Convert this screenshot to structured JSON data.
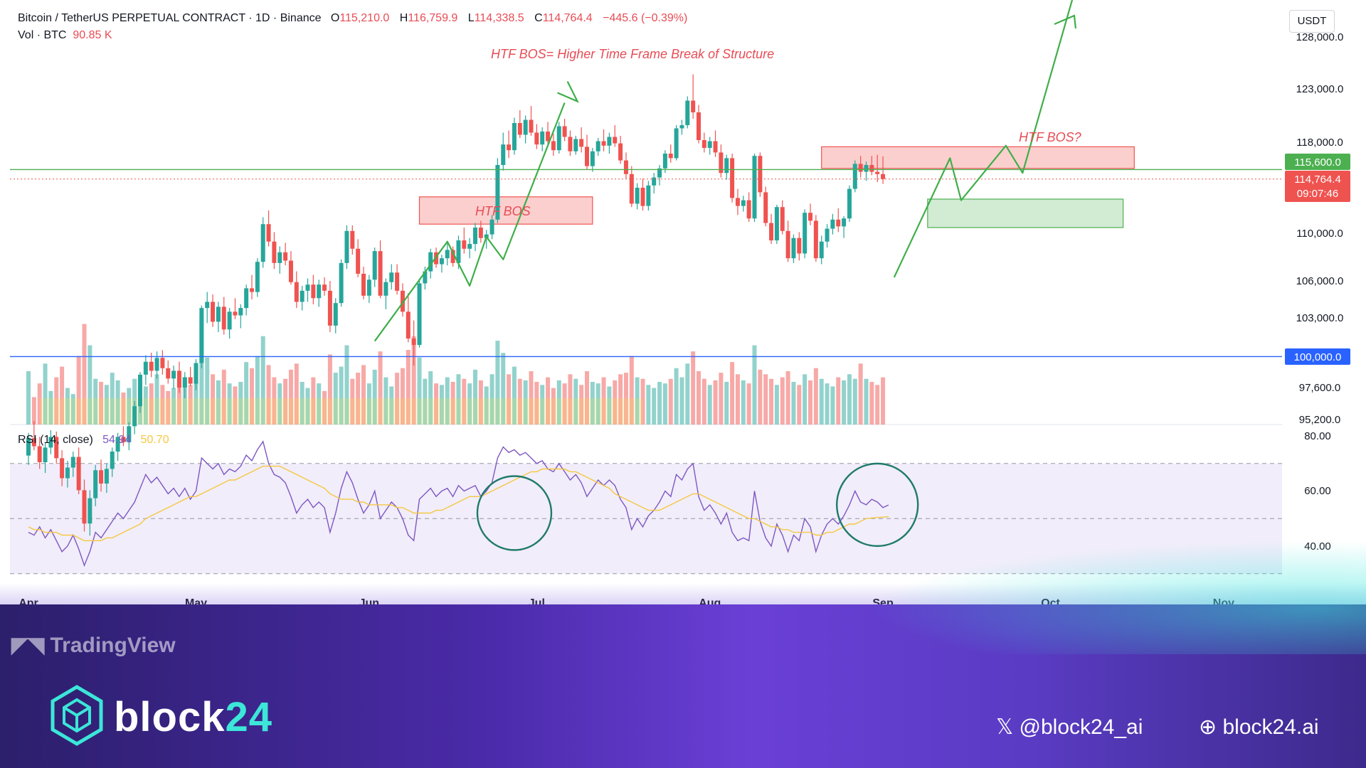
{
  "header": {
    "symbol": "Bitcoin / TetherUS PERPETUAL CONTRACT · 1D · Binance",
    "o_label": "O",
    "o_value": "115,210.0",
    "h_label": "H",
    "h_value": "116,759.9",
    "l_label": "L",
    "l_value": "114,338.5",
    "c_label": "C",
    "c_value": "114,764.4",
    "change": "−445.6 (−0.39%)",
    "vol_label": "Vol · BTC",
    "vol_value": "90.85 K"
  },
  "currency_button": "USDT",
  "rsi_header": {
    "label": "RSI (14, close)",
    "rsi_value": "54.94",
    "ma_value": "50.70"
  },
  "annotations": {
    "title": "HTF BOS= Higher Time Frame Break of Structure",
    "htf_bos_left": "HTF BOS",
    "htf_bos_right": "HTF BOS?"
  },
  "price_badges": {
    "green_level": "115,600.0",
    "last_price": "114,764.4",
    "countdown": "09:07:46",
    "blue_level": "100,000.0"
  },
  "footer": {
    "tradingview": "TradingView",
    "brand_main": "block",
    "brand_accent": "24",
    "x_handle": "@block24_ai",
    "website": "block24.ai"
  },
  "colors": {
    "bull": "#26a69a",
    "bear": "#ef5350",
    "arrow": "#3fae49",
    "rsi_line": "#7e57c2",
    "rsi_ma": "#f5c842",
    "blue_level": "#2962ff",
    "green_level": "#4caf50"
  },
  "chart_data": {
    "type": "candlestick",
    "price_axis_ticks": [
      "128,000.0",
      "123,000.0",
      "118,000.0",
      "110,000.0",
      "106,000.0",
      "103,000.0",
      "97,600.0",
      "95,200.0"
    ],
    "price_axis_values": [
      128000,
      123000,
      118000,
      110000,
      106000,
      103000,
      97600,
      95200
    ],
    "rsi_axis_ticks": [
      "80.00",
      "60.00",
      "40.00"
    ],
    "rsi_bands": [
      70,
      50,
      30
    ],
    "x_labels": [
      "Apr",
      "May",
      "Jun",
      "Jul",
      "Aug",
      "Sep",
      "Oct",
      "Nov"
    ],
    "horizontal_levels": [
      115600,
      114764.4,
      100000
    ],
    "zones": [
      {
        "kind": "supply",
        "from_day": 70,
        "to_day": 101,
        "low": 110800,
        "high": 113200
      },
      {
        "kind": "supply",
        "from_day": 142,
        "to_day": 198,
        "low": 115700,
        "high": 117600
      },
      {
        "kind": "demand",
        "from_day": 161,
        "to_day": 196,
        "low": 110500,
        "high": 113000
      }
    ],
    "candles": [
      [
        92500,
        94200,
        91800,
        93800
      ],
      [
        93800,
        95100,
        92900,
        93200
      ],
      [
        93200,
        93900,
        91500,
        92000
      ],
      [
        92000,
        93500,
        91200,
        93100
      ],
      [
        93100,
        94400,
        92600,
        93900
      ],
      [
        93900,
        94300,
        91900,
        92300
      ],
      [
        92300,
        92900,
        90200,
        90800
      ],
      [
        90800,
        92100,
        90100,
        91600
      ],
      [
        91600,
        92800,
        90900,
        92400
      ],
      [
        92400,
        93100,
        89600,
        89900
      ],
      [
        89900,
        90700,
        86800,
        87400
      ],
      [
        87400,
        89900,
        86500,
        89300
      ],
      [
        89300,
        91800,
        88700,
        91400
      ],
      [
        91400,
        92200,
        89800,
        90400
      ],
      [
        90400,
        91900,
        89700,
        91500
      ],
      [
        91500,
        93100,
        90900,
        92800
      ],
      [
        92800,
        94200,
        92100,
        93900
      ],
      [
        93900,
        94700,
        93200,
        93500
      ],
      [
        93500,
        95000,
        92900,
        94700
      ],
      [
        94700,
        96600,
        94100,
        96200
      ],
      [
        96200,
        98800,
        95700,
        98600
      ],
      [
        98600,
        100100,
        97800,
        99600
      ],
      [
        99600,
        100300,
        98400,
        98900
      ],
      [
        98900,
        100400,
        98300,
        99900
      ],
      [
        99900,
        100500,
        98600,
        99100
      ],
      [
        99100,
        99700,
        97900,
        98300
      ],
      [
        98300,
        99300,
        97500,
        98900
      ],
      [
        98900,
        99600,
        97200,
        97600
      ],
      [
        97600,
        98800,
        96800,
        98400
      ],
      [
        98400,
        99200,
        97700,
        97900
      ],
      [
        97900,
        99800,
        97400,
        99500
      ],
      [
        99500,
        104000,
        99100,
        103800
      ],
      [
        103800,
        105100,
        102600,
        104300
      ],
      [
        104300,
        104900,
        102300,
        102700
      ],
      [
        102700,
        104300,
        101900,
        103900
      ],
      [
        103900,
        104700,
        101700,
        102100
      ],
      [
        102100,
        103800,
        101400,
        103500
      ],
      [
        103500,
        104600,
        102900,
        103200
      ],
      [
        103200,
        104100,
        102200,
        103800
      ],
      [
        103800,
        105700,
        103200,
        105400
      ],
      [
        105400,
        106500,
        104500,
        105100
      ],
      [
        105100,
        107900,
        104700,
        107600
      ],
      [
        107600,
        111400,
        107100,
        110800
      ],
      [
        110800,
        112000,
        108900,
        109300
      ],
      [
        109300,
        110100,
        107000,
        107500
      ],
      [
        107500,
        108900,
        106600,
        108400
      ],
      [
        108400,
        109200,
        107300,
        107700
      ],
      [
        107700,
        108500,
        105700,
        105900
      ],
      [
        105900,
        106800,
        103800,
        104300
      ],
      [
        104300,
        105600,
        103600,
        105200
      ],
      [
        105200,
        106200,
        104300,
        105700
      ],
      [
        105700,
        106500,
        104100,
        104600
      ],
      [
        104600,
        106100,
        103900,
        105700
      ],
      [
        105700,
        106300,
        104800,
        105200
      ],
      [
        105200,
        106000,
        101900,
        102400
      ],
      [
        102400,
        104600,
        101800,
        104200
      ],
      [
        104200,
        107800,
        103900,
        107500
      ],
      [
        107500,
        110700,
        107000,
        110200
      ],
      [
        110200,
        110700,
        108200,
        108700
      ],
      [
        108700,
        109500,
        106300,
        106600
      ],
      [
        106600,
        107200,
        104500,
        104800
      ],
      [
        104800,
        106500,
        104200,
        106100
      ],
      [
        106100,
        108800,
        105500,
        108500
      ],
      [
        108500,
        109400,
        104600,
        104800
      ],
      [
        104800,
        106200,
        103700,
        105900
      ],
      [
        105900,
        107400,
        105300,
        106700
      ],
      [
        106700,
        107400,
        104900,
        105200
      ],
      [
        105200,
        105800,
        103100,
        103500
      ],
      [
        103500,
        105000,
        101100,
        101400
      ],
      [
        101400,
        102800,
        99300,
        100900
      ],
      [
        100900,
        106200,
        100700,
        105800
      ],
      [
        105800,
        107200,
        105300,
        106800
      ],
      [
        106800,
        108700,
        106200,
        108400
      ],
      [
        108400,
        108800,
        107100,
        107400
      ],
      [
        107400,
        108200,
        106700,
        107900
      ],
      [
        107900,
        109300,
        107300,
        108600
      ],
      [
        108600,
        108900,
        107200,
        107500
      ],
      [
        107500,
        109800,
        107000,
        109400
      ],
      [
        109400,
        110500,
        108300,
        108700
      ],
      [
        108700,
        109600,
        107900,
        109100
      ],
      [
        109100,
        110900,
        108500,
        110500
      ],
      [
        110500,
        111100,
        109200,
        109600
      ],
      [
        109600,
        110300,
        108700,
        109900
      ],
      [
        109900,
        111600,
        109500,
        111200
      ],
      [
        111200,
        116600,
        110900,
        116000
      ],
      [
        116000,
        118900,
        115500,
        117800
      ],
      [
        117800,
        119100,
        116600,
        117300
      ],
      [
        117300,
        120300,
        116900,
        119800
      ],
      [
        119800,
        121000,
        118400,
        118700
      ],
      [
        118700,
        120500,
        117900,
        120100
      ],
      [
        120100,
        121400,
        118600,
        118900
      ],
      [
        118900,
        119700,
        117400,
        117800
      ],
      [
        117800,
        119400,
        117200,
        119000
      ],
      [
        119000,
        119900,
        117600,
        118100
      ],
      [
        118100,
        118800,
        116800,
        117300
      ],
      [
        117300,
        119900,
        117000,
        119500
      ],
      [
        119500,
        120200,
        118100,
        118500
      ],
      [
        118500,
        119100,
        116800,
        117200
      ],
      [
        117200,
        118600,
        116900,
        118300
      ],
      [
        118300,
        119400,
        117100,
        117600
      ],
      [
        117600,
        118700,
        115600,
        115900
      ],
      [
        115900,
        117500,
        115400,
        117200
      ],
      [
        117200,
        118400,
        116800,
        118100
      ],
      [
        118100,
        119200,
        117200,
        117700
      ],
      [
        117700,
        118900,
        117000,
        118500
      ],
      [
        118500,
        119600,
        117600,
        117900
      ],
      [
        117900,
        118600,
        116100,
        116400
      ],
      [
        116400,
        117100,
        114800,
        115200
      ],
      [
        115200,
        115900,
        112300,
        112600
      ],
      [
        112600,
        114400,
        112100,
        114000
      ],
      [
        114000,
        114800,
        112000,
        112400
      ],
      [
        112400,
        114600,
        112000,
        114200
      ],
      [
        114200,
        115300,
        113500,
        114900
      ],
      [
        114900,
        116000,
        114200,
        115700
      ],
      [
        115700,
        117300,
        115300,
        117000
      ],
      [
        117000,
        117800,
        116200,
        116600
      ],
      [
        116600,
        119600,
        116400,
        119300
      ],
      [
        119300,
        120100,
        118700,
        119600
      ],
      [
        119600,
        122300,
        119300,
        121900
      ],
      [
        121900,
        124400,
        120200,
        120800
      ],
      [
        120800,
        121500,
        117900,
        118200
      ],
      [
        118200,
        118900,
        117100,
        117500
      ],
      [
        117500,
        118500,
        116900,
        118100
      ],
      [
        118100,
        119100,
        116700,
        117100
      ],
      [
        117100,
        117800,
        114900,
        115300
      ],
      [
        115300,
        116900,
        114700,
        116600
      ],
      [
        116600,
        117000,
        112700,
        113100
      ],
      [
        113100,
        113900,
        111600,
        112400
      ],
      [
        112400,
        113300,
        111900,
        112900
      ],
      [
        112900,
        113600,
        111000,
        111300
      ],
      [
        111300,
        117000,
        111000,
        116800
      ],
      [
        116800,
        117100,
        113200,
        113600
      ],
      [
        113600,
        114100,
        110600,
        110900
      ],
      [
        110900,
        111700,
        109100,
        109400
      ],
      [
        109400,
        112500,
        109100,
        112300
      ],
      [
        112300,
        112900,
        109900,
        110200
      ],
      [
        110200,
        111100,
        107600,
        107900
      ],
      [
        107900,
        109900,
        107500,
        109600
      ],
      [
        109600,
        110100,
        107700,
        108300
      ],
      [
        108300,
        112100,
        107900,
        111800
      ],
      [
        111800,
        112600,
        110700,
        111100
      ],
      [
        111100,
        111600,
        107600,
        107900
      ],
      [
        107900,
        109800,
        107400,
        109300
      ],
      [
        109300,
        110800,
        108800,
        110400
      ],
      [
        110400,
        111700,
        109900,
        111200
      ],
      [
        111200,
        112200,
        110100,
        110600
      ],
      [
        110600,
        111500,
        109600,
        111300
      ],
      [
        111300,
        114200,
        111000,
        113900
      ],
      [
        113900,
        116400,
        113600,
        116100
      ],
      [
        116100,
        116800,
        114900,
        115400
      ],
      [
        115400,
        116300,
        114600,
        116000
      ],
      [
        116000,
        116800,
        115100,
        115400
      ],
      [
        115400,
        116900,
        114500,
        115200
      ],
      [
        115200,
        116759.9,
        114338.5,
        114764.4
      ]
    ],
    "volume": [
      35,
      18,
      27,
      40,
      22,
      31,
      38,
      24,
      20,
      45,
      66,
      52,
      30,
      28,
      26,
      34,
      29,
      21,
      24,
      30,
      28,
      25,
      27,
      33,
      26,
      22,
      24,
      28,
      31,
      26,
      30,
      70,
      44,
      33,
      29,
      36,
      27,
      25,
      28,
      41,
      37,
      45,
      58,
      39,
      31,
      27,
      30,
      36,
      40,
      28,
      24,
      31,
      27,
      22,
      46,
      34,
      38,
      52,
      30,
      34,
      39,
      27,
      36,
      48,
      31,
      25,
      34,
      37,
      49,
      58,
      44,
      30,
      35,
      27,
      26,
      31,
      28,
      33,
      30,
      27,
      36,
      29,
      25,
      33,
      55,
      47,
      33,
      38,
      30,
      29,
      35,
      28,
      26,
      31,
      24,
      29,
      27,
      33,
      30,
      26,
      35,
      28,
      27,
      31,
      25,
      29,
      33,
      34,
      45,
      31,
      30,
      26,
      24,
      28,
      27,
      30,
      37,
      31,
      40,
      48,
      35,
      30,
      26,
      29,
      34,
      28,
      41,
      33,
      29,
      27,
      52,
      36,
      33,
      30,
      26,
      31,
      35,
      28,
      26,
      33,
      29,
      37,
      30,
      27,
      25,
      31,
      29,
      33,
      30,
      40,
      30,
      28,
      26,
      31,
      27,
      22
    ],
    "rsi": [
      45,
      44,
      47,
      43,
      46,
      42,
      38,
      40,
      44,
      39,
      33,
      38,
      45,
      43,
      46,
      49,
      52,
      50,
      53,
      56,
      61,
      66,
      63,
      65,
      62,
      59,
      61,
      58,
      61,
      57,
      60,
      72,
      70,
      68,
      70,
      66,
      68,
      67,
      69,
      73,
      71,
      75,
      78,
      70,
      66,
      65,
      63,
      58,
      52,
      55,
      57,
      54,
      56,
      54,
      45,
      52,
      61,
      67,
      63,
      57,
      52,
      55,
      60,
      50,
      53,
      56,
      54,
      50,
      44,
      42,
      57,
      59,
      61,
      58,
      60,
      61,
      58,
      62,
      60,
      61,
      62,
      58,
      60,
      63,
      72,
      76,
      74,
      75,
      73,
      74,
      72,
      70,
      71,
      68,
      67,
      70,
      67,
      64,
      66,
      63,
      58,
      61,
      64,
      62,
      64,
      62,
      57,
      54,
      46,
      50,
      47,
      51,
      53,
      56,
      60,
      58,
      66,
      64,
      68,
      70,
      58,
      53,
      55,
      52,
      48,
      52,
      45,
      42,
      43,
      42,
      60,
      49,
      43,
      40,
      48,
      44,
      38,
      44,
      42,
      50,
      47,
      38,
      44,
      48,
      50,
      48,
      51,
      55,
      60,
      56,
      55,
      57,
      56,
      54,
      54.94
    ],
    "rsi_ma": [
      47,
      46,
      46,
      45,
      45,
      45,
      44,
      44,
      44,
      43,
      42,
      42,
      42,
      42,
      43,
      43,
      44,
      45,
      46,
      47,
      48,
      50,
      51,
      52,
      53,
      54,
      55,
      56,
      57,
      58,
      58,
      59,
      60,
      61,
      62,
      63,
      64,
      64,
      65,
      66,
      67,
      68,
      69,
      69,
      69,
      69,
      68,
      67,
      66,
      65,
      64,
      63,
      62,
      61,
      59,
      58,
      57,
      57,
      57,
      56,
      56,
      55,
      55,
      55,
      55,
      55,
      54,
      54,
      53,
      52,
      52,
      52,
      52,
      53,
      53,
      54,
      55,
      56,
      57,
      58,
      58,
      58,
      59,
      60,
      61,
      62,
      63,
      64,
      65,
      66,
      67,
      67,
      68,
      68,
      68,
      68,
      68,
      67,
      67,
      66,
      65,
      64,
      63,
      62,
      61,
      59,
      58,
      57,
      56,
      55,
      54,
      53,
      53,
      53,
      54,
      55,
      56,
      57,
      58,
      59,
      59,
      58,
      57,
      56,
      55,
      54,
      53,
      52,
      51,
      50,
      50,
      49,
      48,
      47,
      47,
      46,
      46,
      45,
      45,
      45,
      45,
      44,
      44,
      45,
      45,
      46,
      47,
      48,
      48,
      49,
      50,
      50.2,
      50.4,
      50.5,
      50.7
    ]
  }
}
